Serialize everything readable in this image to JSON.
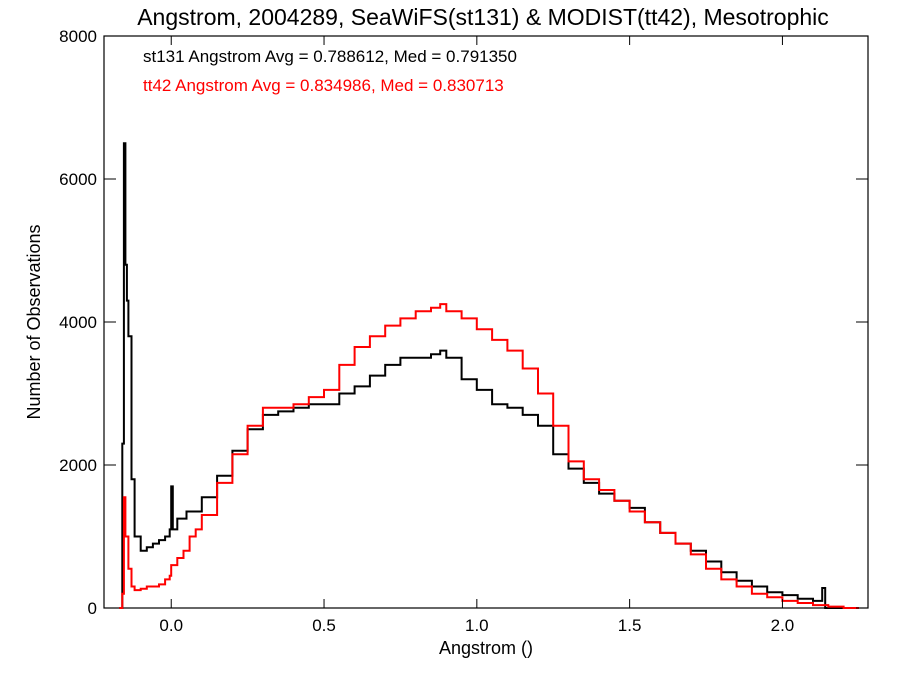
{
  "chart_data": {
    "type": "line",
    "title": "Angstrom, 2004289, SeaWiFS(st131) & MODIST(tt42), Mesotrophic",
    "xlabel": "Angstrom ()",
    "ylabel": "Number of Observations",
    "xlim": [
      -0.22,
      2.28
    ],
    "ylim": [
      0,
      8000
    ],
    "xticks": [
      0.0,
      0.5,
      1.0,
      1.5,
      2.0
    ],
    "xtick_labels": [
      "0.0",
      "0.5",
      "1.0",
      "1.5",
      "2.0"
    ],
    "yticks": [
      0,
      2000,
      4000,
      6000,
      8000
    ],
    "ytick_labels": [
      "0",
      "2000",
      "4000",
      "6000",
      "8000"
    ],
    "grid": false,
    "step": true,
    "annotations": [
      {
        "text": "st131 Angstrom Avg = 0.788612, Med = 0.791350",
        "color": "#000000"
      },
      {
        "text": "tt42 Angstrom Avg = 0.834986, Med = 0.830713",
        "color": "#ff0000"
      }
    ],
    "series": [
      {
        "color": "#000000",
        "x": [
          -0.17,
          -0.16,
          -0.155,
          -0.15,
          -0.145,
          -0.14,
          -0.13,
          -0.12,
          -0.1,
          -0.08,
          -0.06,
          -0.04,
          -0.02,
          -0.005,
          0.0,
          0.005,
          0.02,
          0.05,
          0.1,
          0.15,
          0.2,
          0.25,
          0.3,
          0.35,
          0.4,
          0.45,
          0.5,
          0.55,
          0.6,
          0.65,
          0.7,
          0.75,
          0.8,
          0.85,
          0.88,
          0.9,
          0.95,
          1.0,
          1.05,
          1.1,
          1.15,
          1.2,
          1.25,
          1.3,
          1.35,
          1.4,
          1.45,
          1.5,
          1.55,
          1.6,
          1.65,
          1.7,
          1.75,
          1.8,
          1.85,
          1.9,
          1.95,
          2.0,
          2.05,
          2.1,
          2.13,
          2.14,
          2.15,
          2.2,
          2.25
        ],
        "y": [
          0,
          2300,
          6500,
          4800,
          4300,
          3800,
          1800,
          1000,
          800,
          850,
          900,
          950,
          1000,
          1100,
          1700,
          1100,
          1250,
          1350,
          1550,
          1850,
          2200,
          2500,
          2700,
          2750,
          2800,
          2850,
          2850,
          3000,
          3100,
          3250,
          3400,
          3500,
          3500,
          3550,
          3600,
          3500,
          3200,
          3050,
          2850,
          2800,
          2700,
          2550,
          2150,
          1950,
          1750,
          1600,
          1500,
          1400,
          1200,
          1050,
          900,
          800,
          650,
          500,
          380,
          300,
          220,
          180,
          130,
          100,
          280,
          0,
          0,
          0,
          0
        ]
      },
      {
        "color": "#ff0000",
        "x": [
          -0.17,
          -0.16,
          -0.155,
          -0.15,
          -0.14,
          -0.13,
          -0.12,
          -0.1,
          -0.08,
          -0.06,
          -0.04,
          -0.02,
          -0.005,
          0.0,
          0.02,
          0.04,
          0.06,
          0.08,
          0.1,
          0.15,
          0.2,
          0.25,
          0.3,
          0.35,
          0.4,
          0.45,
          0.5,
          0.55,
          0.6,
          0.65,
          0.7,
          0.75,
          0.8,
          0.85,
          0.88,
          0.9,
          0.95,
          1.0,
          1.05,
          1.1,
          1.15,
          1.2,
          1.25,
          1.3,
          1.35,
          1.4,
          1.45,
          1.5,
          1.55,
          1.6,
          1.65,
          1.7,
          1.75,
          1.8,
          1.85,
          1.9,
          1.95,
          2.0,
          2.05,
          2.1,
          2.15,
          2.2,
          2.25
        ],
        "y": [
          0,
          200,
          1550,
          1000,
          550,
          300,
          250,
          270,
          300,
          300,
          330,
          400,
          450,
          600,
          700,
          800,
          1000,
          1100,
          1300,
          1750,
          2150,
          2550,
          2800,
          2800,
          2850,
          2950,
          3050,
          3400,
          3650,
          3800,
          3950,
          4050,
          4150,
          4200,
          4250,
          4150,
          4050,
          3900,
          3750,
          3600,
          3350,
          3000,
          2550,
          2050,
          1800,
          1650,
          1500,
          1350,
          1200,
          1050,
          900,
          750,
          550,
          400,
          300,
          200,
          150,
          100,
          70,
          40,
          20,
          0,
          0
        ]
      }
    ]
  }
}
